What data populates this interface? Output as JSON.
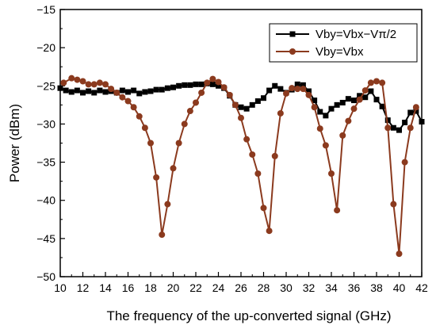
{
  "chart_data": {
    "type": "line",
    "xlabel": "The frequency of the up-converted signal (GHz)",
    "ylabel": "Power (dBm)",
    "xlim": [
      10,
      42
    ],
    "ylim": [
      -50,
      -15
    ],
    "xticks": [
      10,
      12,
      14,
      16,
      18,
      20,
      22,
      24,
      26,
      28,
      30,
      32,
      34,
      36,
      38,
      40,
      42
    ],
    "yticks": [
      -50,
      -45,
      -40,
      -35,
      -30,
      -25,
      -20,
      -15
    ],
    "xtick_labels": [
      "10",
      "12",
      "14",
      "16",
      "18",
      "20",
      "22",
      "24",
      "26",
      "28",
      "30",
      "32",
      "34",
      "36",
      "38",
      "40",
      "42"
    ],
    "ytick_labels": [
      "−50",
      "−45",
      "−40",
      "−35",
      "−30",
      "−25",
      "−20",
      "−15"
    ],
    "grid": false,
    "legend_position": "top-right",
    "series": [
      {
        "name": "Vby=Vbx−Vπ/2",
        "color": "#000000",
        "marker": "square",
        "x": [
          10,
          10.5,
          11,
          11.5,
          12,
          12.5,
          13,
          13.5,
          14,
          14.5,
          15,
          15.5,
          16,
          16.5,
          17,
          17.5,
          18,
          18.5,
          19,
          19.5,
          20,
          20.5,
          21,
          21.5,
          22,
          22.5,
          23,
          23.5,
          24,
          24.5,
          25,
          25.5,
          26,
          26.5,
          27,
          27.5,
          28,
          28.5,
          29,
          29.5,
          30,
          30.5,
          31,
          31.5,
          32,
          32.5,
          33,
          33.5,
          34,
          34.5,
          35,
          35.5,
          36,
          36.5,
          37,
          37.5,
          38,
          38.5,
          39,
          39.5,
          40,
          40.5,
          41,
          41.5,
          42
        ],
        "y": [
          -25.3,
          -25.6,
          -25.8,
          -25.6,
          -25.9,
          -25.7,
          -25.9,
          -25.6,
          -25.8,
          -25.7,
          -25.9,
          -25.6,
          -25.8,
          -25.6,
          -26.0,
          -25.8,
          -25.7,
          -25.5,
          -25.5,
          -25.3,
          -25.2,
          -25.0,
          -24.9,
          -24.9,
          -24.8,
          -24.8,
          -24.7,
          -24.8,
          -25.0,
          -25.3,
          -26.3,
          -27.5,
          -27.8,
          -28.0,
          -27.5,
          -27.0,
          -26.6,
          -25.6,
          -25.0,
          -25.4,
          -25.9,
          -25.5,
          -24.8,
          -24.9,
          -25.7,
          -26.9,
          -28.4,
          -28.9,
          -28.0,
          -27.5,
          -27.2,
          -26.7,
          -26.9,
          -26.3,
          -26.5,
          -25.7,
          -26.8,
          -27.7,
          -29.5,
          -30.5,
          -30.8,
          -29.8,
          -28.5,
          -28.3,
          -29.7
        ]
      },
      {
        "name": "Vby=Vbx",
        "color": "#8b3a1e",
        "marker": "circle",
        "x": [
          10.3,
          11,
          11.5,
          12,
          12.5,
          13,
          13.5,
          14,
          14.5,
          15,
          15.5,
          16,
          16.5,
          17,
          17.5,
          18,
          18.5,
          19,
          19.5,
          20,
          20.5,
          21,
          21.5,
          22,
          22.5,
          23,
          23.5,
          24,
          24.5,
          25,
          25.5,
          26,
          26.5,
          27,
          27.5,
          28,
          28.5,
          29,
          29.5,
          30,
          30.5,
          31,
          31.5,
          32,
          32.5,
          33,
          33.5,
          34,
          34.5,
          35,
          35.5,
          36,
          36.5,
          37,
          37.5,
          38,
          38.5,
          39,
          39.5,
          40,
          40.5,
          41,
          41.5
        ],
        "y": [
          -24.6,
          -24.0,
          -24.2,
          -24.4,
          -24.8,
          -24.8,
          -24.6,
          -24.8,
          -25.4,
          -25.9,
          -26.5,
          -27.0,
          -27.8,
          -29.0,
          -30.5,
          -32.5,
          -37.0,
          -44.5,
          -40.5,
          -35.8,
          -32.5,
          -30.0,
          -28.3,
          -27.2,
          -25.9,
          -24.6,
          -24.1,
          -24.5,
          -25.2,
          -26.2,
          -27.5,
          -29.2,
          -32.0,
          -34.0,
          -36.5,
          -41.0,
          -44.0,
          -34.2,
          -28.6,
          -26.0,
          -25.3,
          -25.4,
          -25.4,
          -26.2,
          -27.8,
          -30.6,
          -32.8,
          -36.5,
          -41.3,
          -31.5,
          -29.6,
          -28.0,
          -26.8,
          -25.6,
          -24.6,
          -24.4,
          -24.6,
          -30.5,
          -40.5,
          -47.0,
          -35.0,
          -30.5,
          -27.8
        ]
      }
    ]
  }
}
